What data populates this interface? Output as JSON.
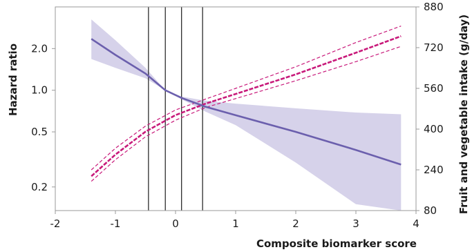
{
  "chart_data": {
    "type": "line",
    "xlabel": "Composite biomarker score",
    "ylabel": "Hazard ratio",
    "y2label": "Fruit and vegetable intake (g/day)",
    "x_ticks": [
      "-2",
      "-1",
      "0",
      "1",
      "2",
      "3",
      "4"
    ],
    "xlim": [
      -2,
      4
    ],
    "y_scale": "log",
    "y_ticks": [
      "0.2",
      "0.5",
      "1.0",
      "2.0"
    ],
    "ylim": [
      0.135,
      4.0
    ],
    "y2_ticks": [
      "80",
      "240",
      "400",
      "560",
      "720",
      "880"
    ],
    "y2lim": [
      80,
      880
    ],
    "grid": false,
    "vertical_reference_lines_x": [
      -0.45,
      -0.17,
      0.1,
      0.45
    ],
    "colors": {
      "hazard": "#6b5fad",
      "hazard_band": "#d6d2ea",
      "intake": "#c8197a",
      "frame": "#999999"
    },
    "series": [
      {
        "axis": "left",
        "style": "solid",
        "x": [
          -1.4,
          -1.0,
          -0.5,
          -0.17,
          0.1,
          0.5,
          1.0,
          2.0,
          3.0,
          3.75
        ],
        "values": [
          2.35,
          1.8,
          1.32,
          1.0,
          0.88,
          0.76,
          0.66,
          0.5,
          0.37,
          0.29
        ],
        "band_lower": [
          1.68,
          1.45,
          1.22,
          1.0,
          0.86,
          0.7,
          0.56,
          0.3,
          0.15,
          0.095
        ],
        "band_upper": [
          3.25,
          2.3,
          1.45,
          1.0,
          0.9,
          0.84,
          0.8,
          0.74,
          0.69,
          0.67
        ]
      },
      {
        "axis": "right",
        "style": "dashed",
        "x": [
          -1.4,
          -1.0,
          -0.5,
          0.0,
          0.5,
          1.0,
          2.0,
          3.0,
          3.75
        ],
        "values": [
          215,
          300,
          390,
          455,
          500,
          538,
          615,
          700,
          765
        ],
        "band_lower": [
          195,
          280,
          370,
          435,
          485,
          520,
          590,
          665,
          725
        ],
        "band_upper": [
          240,
          325,
          412,
          475,
          518,
          560,
          645,
          740,
          805
        ]
      }
    ]
  }
}
